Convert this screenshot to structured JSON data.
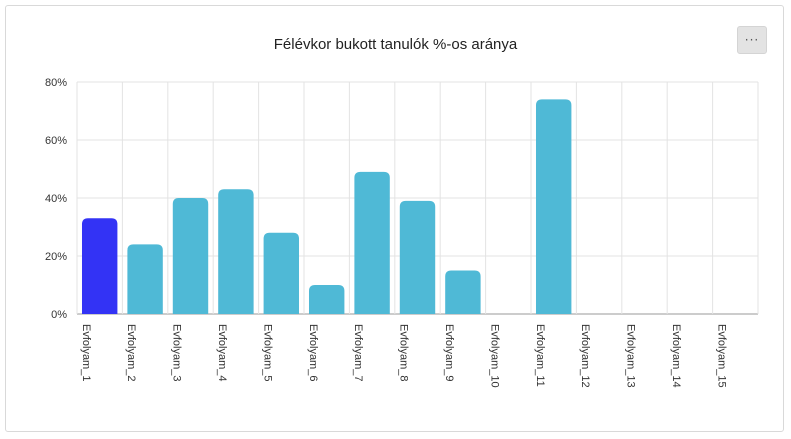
{
  "menu": {
    "label": "···",
    "icon": "ellipsis-icon"
  },
  "colors": {
    "bar": "#4fb9d6",
    "bar_highlight": "#3333f5",
    "grid": "#e3e3e3",
    "axis": "#999999"
  },
  "chart_data": {
    "type": "bar",
    "title": "Félévkor bukott tanulók %-os aránya",
    "xlabel": "",
    "ylabel": "",
    "categories": [
      "Evfolyam_1",
      "Evfolyam_2",
      "Evfolyam_3",
      "Evfolyam_4",
      "Evfolyam_5",
      "Evfolyam_6",
      "Evfolyam_7",
      "Evfolyam_8",
      "Evfolyam_9",
      "Evfolyam_10",
      "Evfolyam_11",
      "Evfolyam_12",
      "Evfolyam_13",
      "Evfolyam_14",
      "Evfolyam_15"
    ],
    "values": [
      33,
      24,
      40,
      43,
      28,
      10,
      49,
      39,
      15,
      0,
      74,
      0,
      0,
      0,
      0
    ],
    "highlight_index": 0,
    "ylim": [
      0,
      80
    ],
    "yticks": [
      0,
      20,
      40,
      60,
      80
    ],
    "ytick_labels": [
      "0%",
      "20%",
      "40%",
      "60%",
      "80%"
    ],
    "grid": true,
    "legend": "none"
  }
}
